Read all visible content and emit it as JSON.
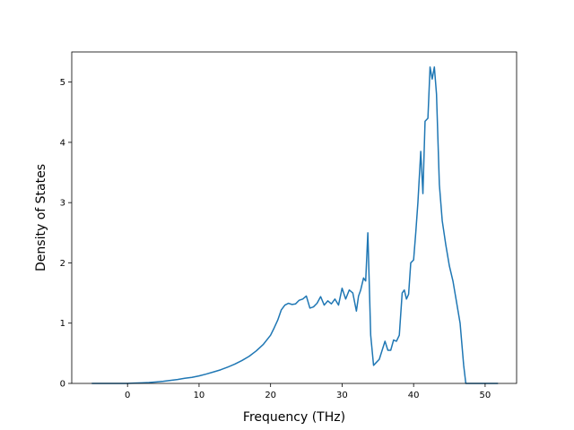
{
  "chart_data": {
    "type": "line",
    "title": "",
    "xlabel": "Frequency (THz)",
    "ylabel": "Density of States",
    "xlim": [
      -7.8,
      54.4
    ],
    "ylim": [
      0,
      5.5
    ],
    "xticks": [
      0,
      10,
      20,
      30,
      40,
      50
    ],
    "yticks": [
      0,
      1,
      2,
      3,
      4,
      5
    ],
    "grid": false,
    "legend": "none",
    "line_color": "#1f77b4",
    "series": [
      {
        "x": [
          -5,
          -2,
          0,
          1,
          2,
          3,
          4,
          5,
          6,
          7,
          8,
          9,
          10,
          11,
          12,
          13,
          14,
          15,
          16,
          17,
          18,
          19,
          20,
          20.5,
          21,
          21.5,
          22,
          22.5,
          23,
          23.5,
          24,
          24.5,
          25,
          25.5,
          26,
          26.5,
          27,
          27.5,
          28,
          28.5,
          29,
          29.5,
          30,
          30.5,
          31,
          31.5,
          32,
          32.3,
          32.6,
          33,
          33.3,
          33.6,
          34,
          34.4,
          34.8,
          35.2,
          35.6,
          36,
          36.4,
          36.8,
          37.2,
          37.6,
          38,
          38.4,
          38.7,
          39,
          39.3,
          39.6,
          40,
          40.3,
          40.6,
          41,
          41.3,
          41.6,
          42,
          42.3,
          42.6,
          42.9,
          43.2,
          43.6,
          44,
          44.5,
          45,
          45.5,
          46,
          46.5,
          47,
          47.3,
          48,
          50,
          51.8
        ],
        "y": [
          0,
          0,
          0,
          0.005,
          0.01,
          0.015,
          0.025,
          0.035,
          0.05,
          0.065,
          0.085,
          0.1,
          0.125,
          0.155,
          0.19,
          0.225,
          0.27,
          0.32,
          0.38,
          0.45,
          0.54,
          0.65,
          0.8,
          0.92,
          1.05,
          1.22,
          1.3,
          1.33,
          1.31,
          1.32,
          1.38,
          1.4,
          1.45,
          1.25,
          1.27,
          1.33,
          1.44,
          1.3,
          1.37,
          1.32,
          1.4,
          1.3,
          1.58,
          1.4,
          1.55,
          1.5,
          1.2,
          1.45,
          1.55,
          1.75,
          1.7,
          2.5,
          0.8,
          0.3,
          0.35,
          0.4,
          0.55,
          0.7,
          0.55,
          0.55,
          0.72,
          0.7,
          0.8,
          1.5,
          1.55,
          1.4,
          1.48,
          2.0,
          2.05,
          2.5,
          3.0,
          3.85,
          3.15,
          4.35,
          4.4,
          5.25,
          5.05,
          5.25,
          4.8,
          3.3,
          2.7,
          2.3,
          1.95,
          1.7,
          1.35,
          1.0,
          0.3,
          0,
          0,
          0,
          0
        ]
      }
    ]
  }
}
